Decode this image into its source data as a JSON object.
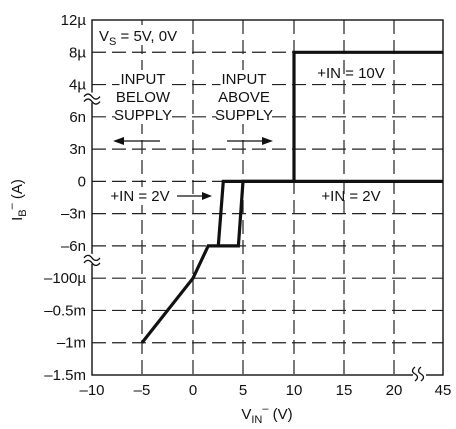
{
  "chart_data": {
    "type": "line",
    "title": "",
    "xlabel": {
      "main": "V",
      "sub": "IN",
      "sup": "–",
      "unit": " (V)"
    },
    "ylabel": {
      "main": "I",
      "sub": "B",
      "sup": "–",
      "unit": " (A)"
    },
    "x_ticks": [
      "–10",
      "–5",
      "0",
      "5",
      "10",
      "15",
      "20",
      "45"
    ],
    "y_ticks": [
      "12µ",
      "8µ",
      "4µ",
      "6n",
      "3n",
      "0",
      "–3n",
      "–6n",
      "–100µ",
      "–0.5m",
      "–1m",
      "–1.5m"
    ],
    "x_axis_note": "piecewise: –10 to 20 linear, axis break, then 45",
    "y_axis_note": "piecewise: current axis with breaks between 4µ and 6n, and between –6n and –100µ",
    "grid": true,
    "annotations": {
      "supply": {
        "main": "V",
        "sub": "S",
        "rest": " = 5V, 0V"
      },
      "below": [
        "INPUT",
        "BELOW",
        "SUPPLY"
      ],
      "above": [
        "INPUT",
        "ABOVE",
        "SUPPLY"
      ],
      "in10": "+IN = 10V",
      "in2_left": "+IN = 2V",
      "in2_right": "+IN = 2V"
    },
    "series": [
      {
        "values_note": "(V_IN, I_B) pairs; y in tick units",
        "points": [
          [
            "–5",
            "–1m"
          ],
          [
            "0",
            "–100µ"
          ],
          [
            "1.5",
            "–6n"
          ],
          [
            "2.5",
            "–6n"
          ],
          [
            "3",
            "0"
          ],
          [
            "20",
            "0"
          ],
          [
            "45",
            "0"
          ]
        ]
      },
      {
        "points": [
          [
            "2.5",
            "–6n"
          ],
          [
            "4.5",
            "–6n"
          ],
          [
            "5",
            "0"
          ],
          [
            "10",
            "0"
          ],
          [
            "10",
            "8µ"
          ],
          [
            "45",
            "8µ"
          ]
        ]
      }
    ]
  }
}
